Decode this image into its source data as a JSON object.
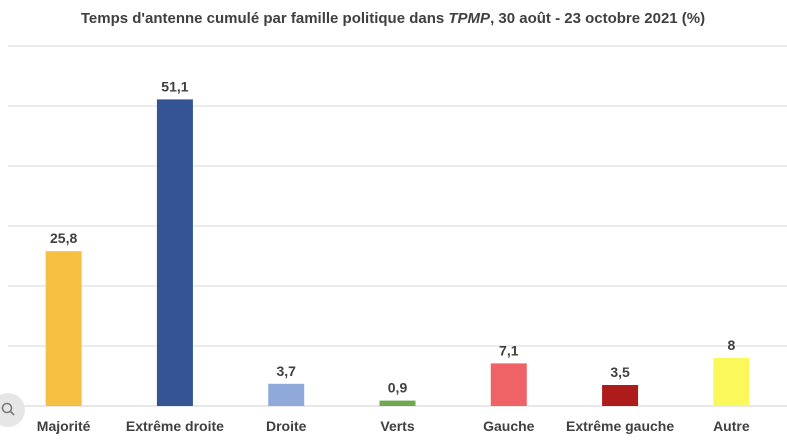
{
  "chart_data": {
    "type": "bar",
    "title_main": "Temps d'antenne cumulé par famille politique dans ",
    "title_italic": "TPMP",
    "title_rest": ", 30 août - 23 octobre 2021 (%)",
    "categories": [
      "Majorité",
      "Extrême droite",
      "Droite",
      "Verts",
      "Gauche",
      "Extrême gauche",
      "Autre"
    ],
    "values": [
      25.8,
      51.1,
      3.7,
      0.9,
      7.1,
      3.5,
      8
    ],
    "value_labels": [
      "25,8",
      "51,1",
      "3,7",
      "0,9",
      "7,1",
      "3,5",
      "8"
    ],
    "colors": [
      "#F6C143",
      "#345493",
      "#8FA9DB",
      "#6EA84F",
      "#EF6266",
      "#AE1B1B",
      "#FBF85B"
    ],
    "ylim": [
      0,
      60
    ],
    "grid": true,
    "legend": "none",
    "xlabel": "",
    "ylabel": ""
  },
  "icons": {
    "corner": "visual-search-icon"
  }
}
